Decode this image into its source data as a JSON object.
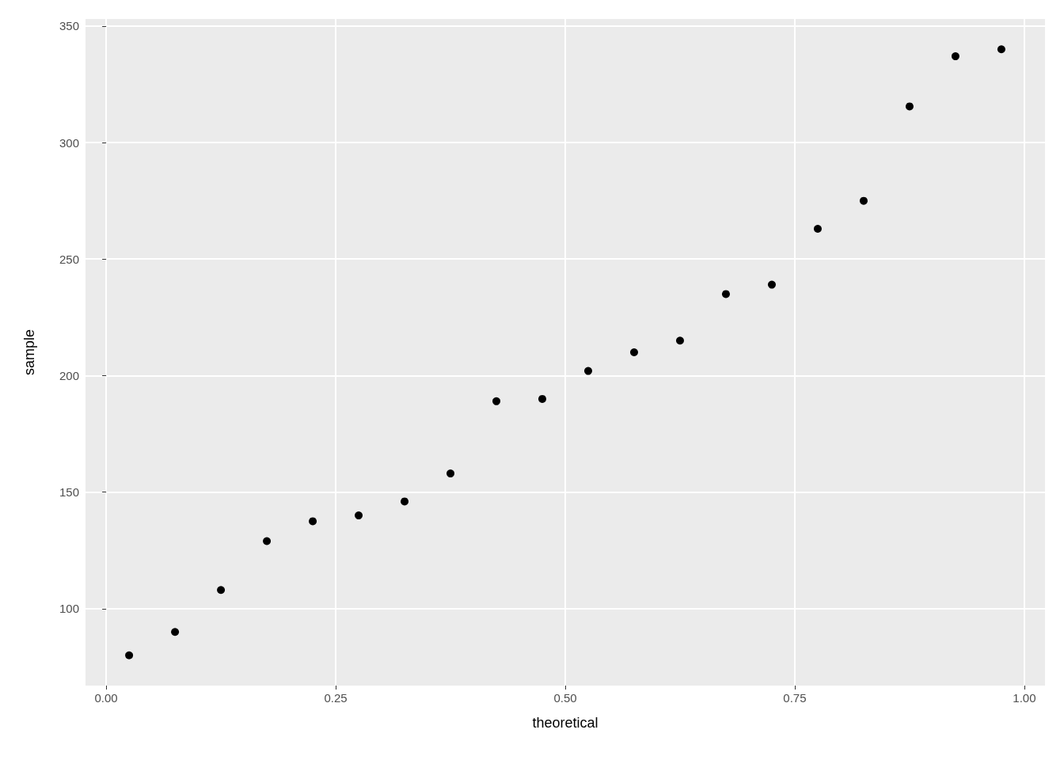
{
  "chart_data": {
    "type": "scatter",
    "xlabel": "theoretical",
    "ylabel": "sample",
    "x": [
      0.025,
      0.075,
      0.125,
      0.175,
      0.225,
      0.275,
      0.325,
      0.375,
      0.425,
      0.475,
      0.525,
      0.575,
      0.625,
      0.675,
      0.725,
      0.775,
      0.825,
      0.875,
      0.925,
      0.975
    ],
    "series": [
      {
        "color": "#000000",
        "values": [
          80,
          90,
          108,
          129,
          137.5,
          140,
          146,
          158,
          189,
          190,
          202,
          210,
          215,
          235,
          239,
          263,
          275,
          315.5,
          337,
          340
        ]
      }
    ],
    "xlim": [
      -0.0225,
      1.0225
    ],
    "ylim": [
      67,
      353
    ],
    "xticks": [
      {
        "value": 0,
        "label": "0.00"
      },
      {
        "value": 0.25,
        "label": "0.25"
      },
      {
        "value": 0.5,
        "label": "0.50"
      },
      {
        "value": 0.75,
        "label": "0.75"
      },
      {
        "value": 1,
        "label": "1.00"
      }
    ],
    "yticks": [
      100,
      150,
      200,
      250,
      300,
      350
    ],
    "grid": true,
    "marker": "circle"
  }
}
